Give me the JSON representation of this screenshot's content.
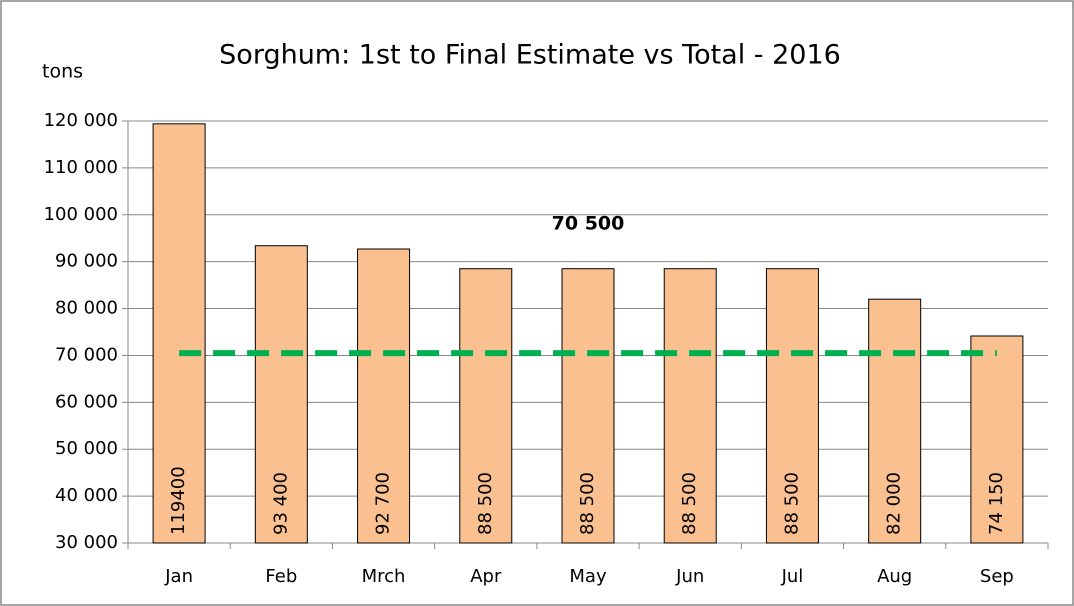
{
  "chart_data": {
    "type": "bar",
    "title": "Sorghum: 1st to Final Estimate vs Total - 2016",
    "y_label": "tons",
    "categories": [
      "Jan",
      "Feb",
      "Mrch",
      "Apr",
      "May",
      "Jun",
      "Jul",
      "Aug",
      "Sep"
    ],
    "values": [
      119400,
      93400,
      92700,
      88500,
      88500,
      88500,
      88500,
      82000,
      74150
    ],
    "value_labels": [
      "119400",
      "93 400",
      "92 700",
      "88 500",
      "88 500",
      "88 500",
      "88 500",
      "82 000",
      "74 150"
    ],
    "color": "#fac090",
    "total": {
      "value": 70500,
      "label": "70 500",
      "color": "#00b050"
    },
    "ylim": [
      30000,
      120000
    ],
    "yticks": [
      {
        "value": 30000,
        "label": "30 000"
      },
      {
        "value": 40000,
        "label": "40 000"
      },
      {
        "value": 50000,
        "label": "50 000"
      },
      {
        "value": 60000,
        "label": "60 000"
      },
      {
        "value": 70000,
        "label": "70 000"
      },
      {
        "value": 80000,
        "label": "80 000"
      },
      {
        "value": 90000,
        "label": "90 000"
      },
      {
        "value": 100000,
        "label": "100 000"
      },
      {
        "value": 110000,
        "label": "110 000"
      },
      {
        "value": 120000,
        "label": "120 000"
      }
    ],
    "grid": true
  }
}
